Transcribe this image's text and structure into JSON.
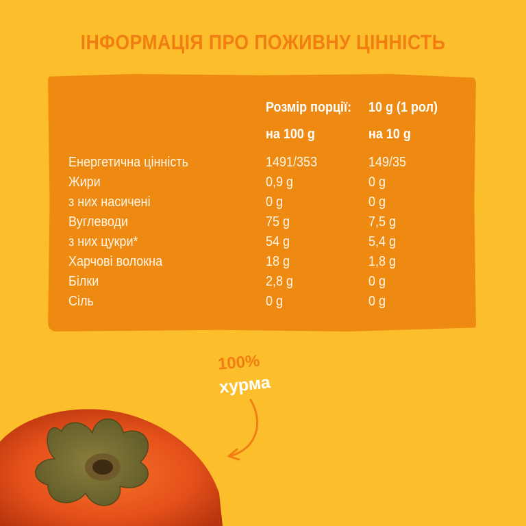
{
  "title": "ІНФОРМАЦІЯ ПРО ПОЖИВНУ ЦІННІСТЬ",
  "serving": {
    "label": "Розмір порції:",
    "value": "10 g (1 рол)"
  },
  "columns": {
    "per100": "на 100 g",
    "per10": "на 10 g"
  },
  "rows": [
    {
      "name": "Енергетична цінність",
      "per100": "1491/353",
      "per10": "149/35"
    },
    {
      "name": "Жири",
      "per100": "0,9 g",
      "per10": "0 g"
    },
    {
      "name": "з них насичені",
      "per100": "0 g",
      "per10": "0 g"
    },
    {
      "name": "Вуглеводи",
      "per100": "75 g",
      "per10": "7,5 g"
    },
    {
      "name": "з них цукри*",
      "per100": "54 g",
      "per10": "5,4 g"
    },
    {
      "name": "Харчові волокна",
      "per100": "18 g",
      "per10": "1,8 g"
    },
    {
      "name": "Білки",
      "per100": "2,8 g",
      "per10": "0 g"
    },
    {
      "name": "Сіль",
      "per100": "0 g",
      "per10": "0 g"
    }
  ],
  "badge": {
    "percent": "100%",
    "name": "хурма"
  },
  "colors": {
    "background": "#FDBE2C",
    "panel": "#EE8A12",
    "accent": "#F07E12"
  },
  "image": "persimmon-photo"
}
